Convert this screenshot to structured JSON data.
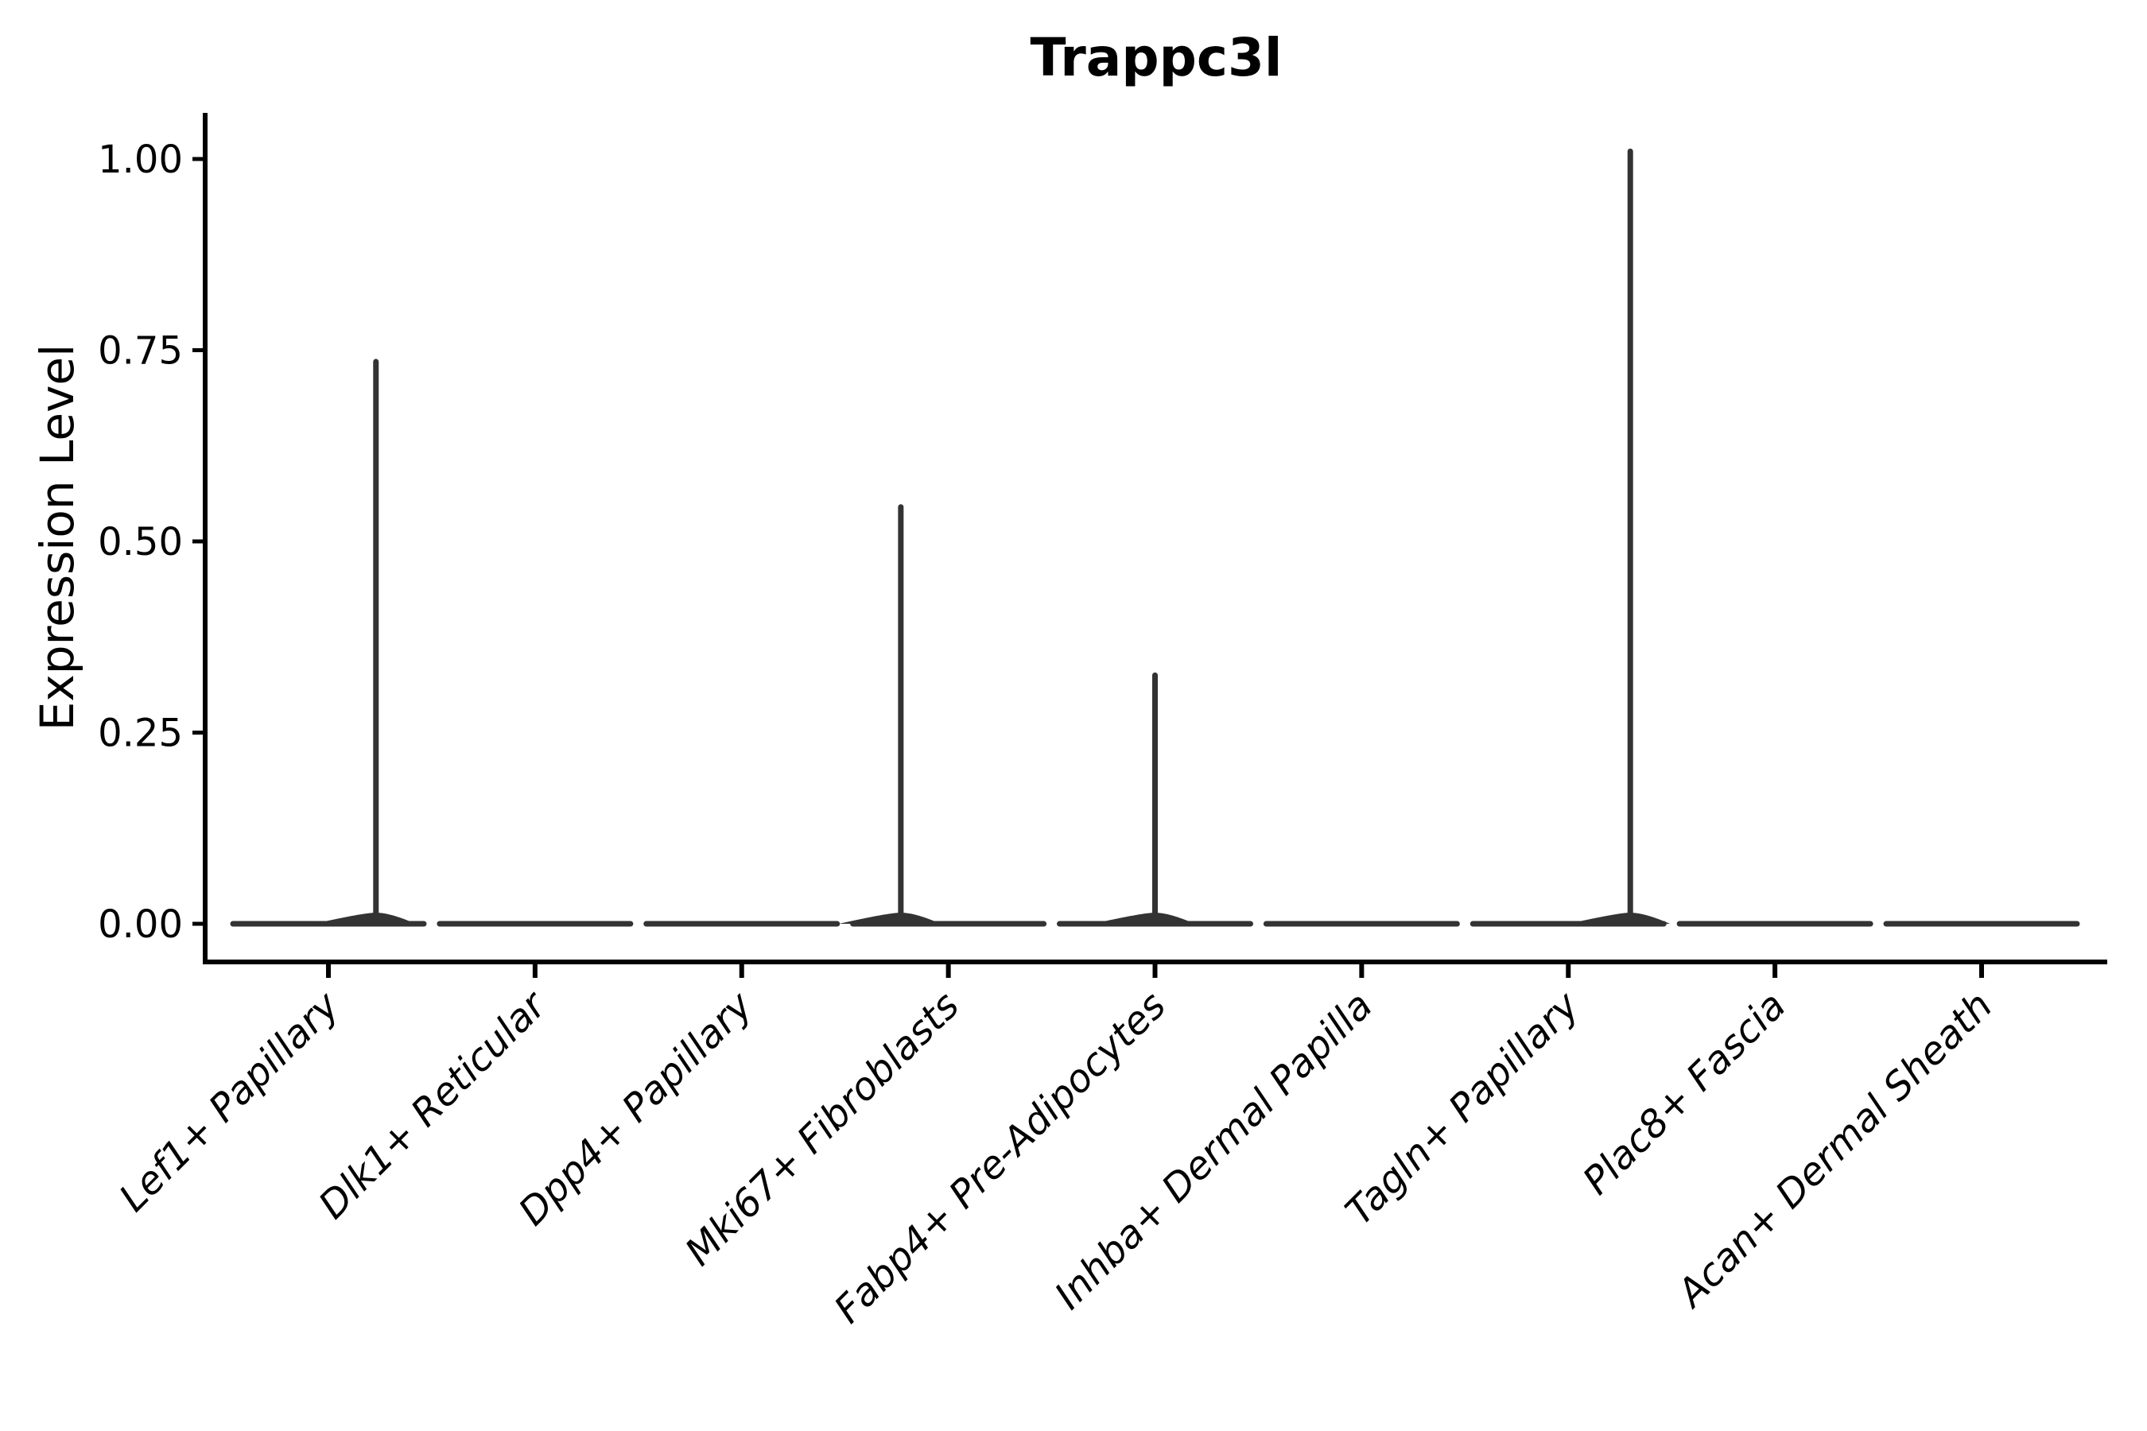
{
  "figure": {
    "background": "#ffffff"
  },
  "chart_data": {
    "type": "violin",
    "title": "Trappc3l",
    "ylabel": "Expression Level",
    "xlabel": "",
    "ylim": [
      -0.05,
      1.06
    ],
    "grid": false,
    "legend_position": "none",
    "y_ticks": [
      {
        "value": 1.0,
        "label": "1.00"
      },
      {
        "value": 0.75,
        "label": "0.75"
      },
      {
        "value": 0.5,
        "label": "0.50"
      },
      {
        "value": 0.25,
        "label": "0.25"
      },
      {
        "value": 0.0,
        "label": "0.00"
      }
    ],
    "categories": [
      "Lef1+ Papillary",
      "Dlk1+ Reticular",
      "Dpp4+ Papillary",
      "Mki67+ Fibroblasts",
      "Fabp4+ Pre-Adipocytes",
      "Inhba+ Dermal Papilla",
      "Tagln+ Papillary",
      "Plac8+ Fascia",
      "Acan+ Dermal Sheath"
    ],
    "series": [
      {
        "category": "Lef1+ Papillary",
        "baseline": 0.0,
        "max_expression": 0.735,
        "spike_offset": 0.23
      },
      {
        "category": "Dlk1+ Reticular",
        "baseline": 0.0,
        "max_expression": 0.0,
        "spike_offset": null
      },
      {
        "category": "Dpp4+ Papillary",
        "baseline": 0.0,
        "max_expression": 0.0,
        "spike_offset": null
      },
      {
        "category": "Mki67+ Fibroblasts",
        "baseline": 0.0,
        "max_expression": 0.545,
        "spike_offset": -0.23
      },
      {
        "category": "Fabp4+ Pre-Adipocytes",
        "baseline": 0.0,
        "max_expression": 0.325,
        "spike_offset": 0.0
      },
      {
        "category": "Inhba+ Dermal Papilla",
        "baseline": 0.0,
        "max_expression": 0.0,
        "spike_offset": null
      },
      {
        "category": "Tagln+ Papillary",
        "baseline": 0.0,
        "max_expression": 1.01,
        "spike_offset": 0.3
      },
      {
        "category": "Plac8+ Fascia",
        "baseline": 0.0,
        "max_expression": 0.0,
        "spike_offset": null
      },
      {
        "category": "Acan+ Dermal Sheath",
        "baseline": 0.0,
        "max_expression": 0.0,
        "spike_offset": null
      }
    ]
  },
  "colors": {
    "violin_stroke": "#333333",
    "axis": "#000000",
    "text": "#000000"
  }
}
